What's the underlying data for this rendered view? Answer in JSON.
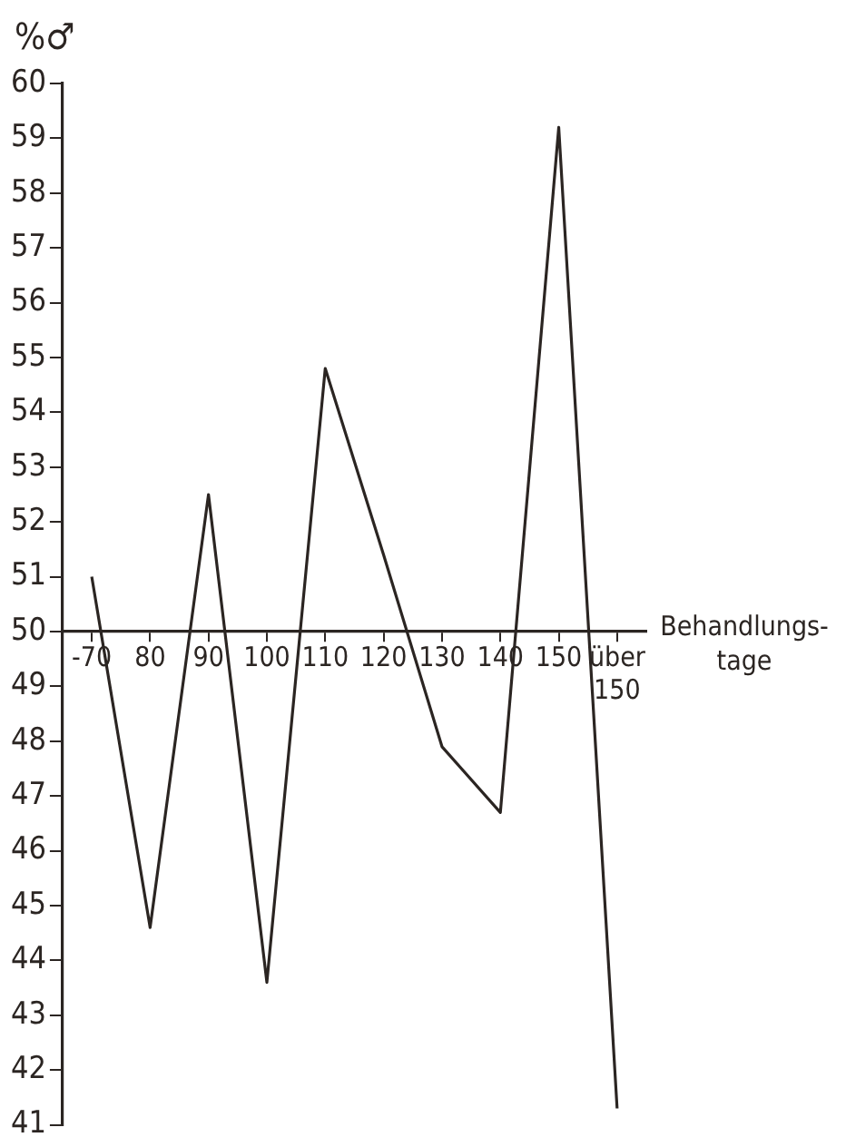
{
  "chart_data": {
    "type": "line",
    "ylabel": "%♂",
    "xlabel": "Behandlungs-tage",
    "categories": [
      "-70",
      "80",
      "90",
      "100",
      "110",
      "120",
      "130",
      "140",
      "150",
      "über 150"
    ],
    "series": [
      {
        "color": "#2b2522",
        "values": [
          51.0,
          44.6,
          52.5,
          43.6,
          54.8,
          51.4,
          47.9,
          46.7,
          59.2,
          41.3
        ]
      }
    ],
    "ylim": [
      41,
      60
    ],
    "yticks": [
      41,
      42,
      43,
      44,
      45,
      46,
      47,
      48,
      49,
      50,
      51,
      52,
      53,
      54,
      55,
      56,
      57,
      58,
      59,
      60
    ],
    "grid": false,
    "legend": false,
    "marker": "none",
    "line_style": "solid"
  }
}
